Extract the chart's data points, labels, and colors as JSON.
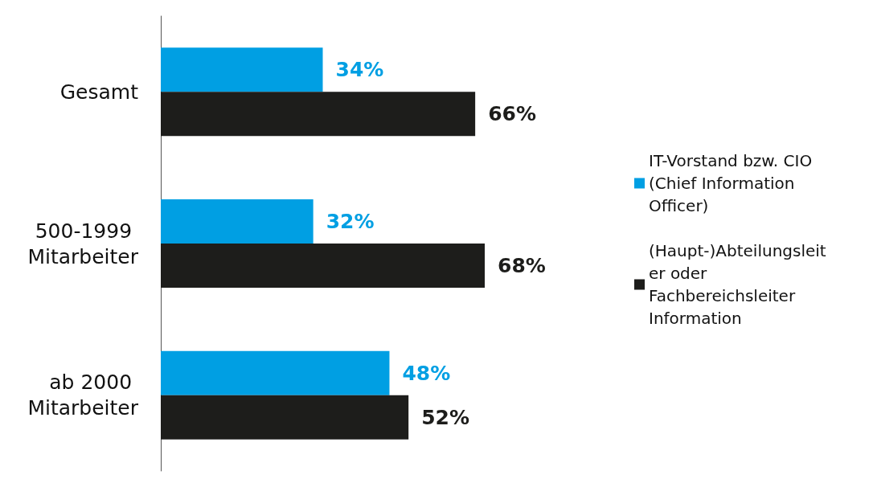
{
  "chart_data": {
    "type": "bar",
    "orientation": "horizontal",
    "categories": [
      "Gesamt",
      "500-1999 Mitarbeiter",
      "ab 2000 Mitarbeiter"
    ],
    "series": [
      {
        "name": "IT-Vorstand bzw. CIO (Chief Information Officer)",
        "color": "#009fe3",
        "values": [
          34,
          32,
          48
        ],
        "value_labels": [
          "34%",
          "32%",
          "48%"
        ]
      },
      {
        "name": "(Haupt-)Abteilungsleiter oder Fachbereichsleiter Information",
        "color": "#1d1d1b",
        "values": [
          66,
          68,
          52
        ],
        "value_labels": [
          "66%",
          "68%",
          "52%"
        ]
      }
    ],
    "tick_labels": "y",
    "grid": false,
    "legend": "right"
  }
}
